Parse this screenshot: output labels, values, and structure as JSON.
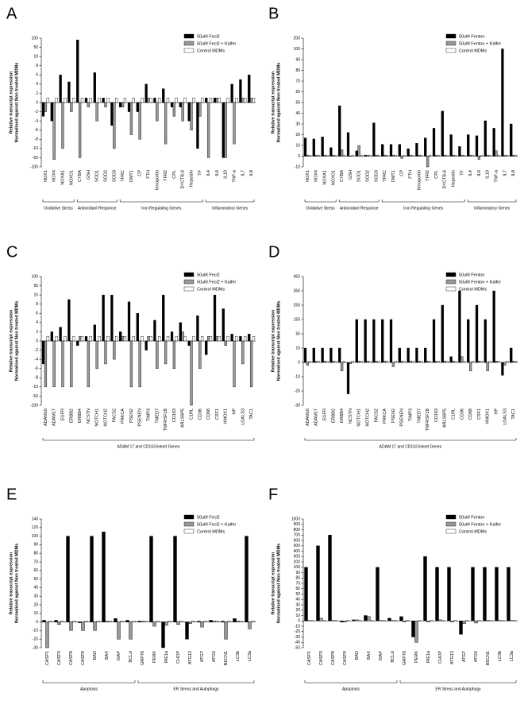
{
  "chart_data": [
    {
      "type": "bar",
      "panel": "A",
      "ylabel": [
        "Relative transcript expression",
        "Normalised against Non treated MDMs"
      ],
      "categories": [
        "NOX1",
        "NOX4",
        "NOXA1",
        "NOXO1",
        "CYBA",
        "GSH",
        "SOD1",
        "SOD2",
        "SOD3",
        "TFRC",
        "DMT1",
        "CP",
        "FTH",
        "ferroportin",
        "TFR2",
        "CPL",
        "DYCTB-6",
        "Hepcidin",
        "TF",
        "IL4",
        "IL6",
        "IL10",
        "TNF-a",
        "IL7",
        "IL8"
      ],
      "groups": [
        "Oxidative Stress",
        "Antioxidant Response",
        "Iron Regulating Genes",
        "Inflammatory Genes"
      ],
      "series": [
        {
          "name": "50uM Fecl2",
          "color": "#000000",
          "values": [
            -3,
            -4,
            6,
            4.5,
            90,
            1,
            6.5,
            1,
            -5,
            -1,
            -2,
            -2,
            4,
            1,
            3,
            -1,
            -1,
            -4,
            -10,
            1,
            1,
            -50,
            4,
            5,
            6
          ]
        },
        {
          "name": "50uM Fecl2 + Kalfer",
          "color": "#999999",
          "values": [
            -2,
            -60,
            -10,
            -2,
            -50,
            -1,
            -4,
            -1,
            -10,
            -1,
            -7,
            -8,
            1,
            -4,
            -9,
            -3,
            -4,
            -6,
            -3,
            -50,
            1,
            -50,
            -9,
            1,
            1
          ]
        },
        {
          "name": "Control MDMs",
          "color": "#ffffff",
          "values": [
            1,
            1,
            1,
            1,
            1,
            1,
            1,
            1,
            1,
            1,
            1,
            1,
            1,
            1,
            1,
            1,
            1,
            1,
            1,
            1,
            1,
            1,
            1,
            1,
            1
          ]
        }
      ],
      "ylim": [
        -100,
        100
      ],
      "yticks": [
        -100,
        -50,
        -10,
        -8,
        -6,
        -4,
        -2,
        0,
        2,
        4,
        6,
        8,
        10,
        50,
        100
      ]
    },
    {
      "type": "bar",
      "panel": "B",
      "ylabel": [
        "Relative transcript expression",
        "Normalised against Non treated MDMs"
      ],
      "categories": [
        "NOX1",
        "NOX4",
        "NOXA1",
        "NOXO1",
        "CYBA",
        "GSH",
        "SOD1",
        "SOD2",
        "SOD3",
        "TFRC",
        "DMT1",
        "CP",
        "FTH",
        "ferroportin",
        "TFR2",
        "CPL",
        "DYCTB-6",
        "Hepcidin",
        "TF",
        "IL4",
        "IL6",
        "IL10",
        "TNF-a",
        "IL7",
        "IL8"
      ],
      "groups": [
        "Oxidative Stress",
        "Antioxidant Response",
        "Iron Regulating Genes",
        "Inflammatory Genes"
      ],
      "series": [
        {
          "name": "50uM Fenton",
          "color": "#000000",
          "values": [
            17,
            16,
            18,
            8,
            47,
            22,
            5,
            1,
            31,
            11,
            11,
            11,
            7,
            12,
            17,
            26,
            42,
            20,
            9,
            20,
            19,
            33,
            26,
            100,
            30
          ]
        },
        {
          "name": "50uM Fenton + Kalfer",
          "color": "#999999",
          "values": [
            1,
            1,
            1,
            1,
            6,
            0,
            10,
            1,
            1,
            1,
            1,
            -2,
            1,
            1,
            -10,
            1,
            1,
            1,
            1,
            1,
            -3,
            1,
            5,
            1,
            1
          ]
        },
        {
          "name": "Control MDMs",
          "color": "#ffffff",
          "values": [
            1,
            1,
            1,
            1,
            1,
            1,
            1,
            1,
            1,
            1,
            1,
            1,
            1,
            1,
            1,
            1,
            1,
            1,
            1,
            1,
            1,
            1,
            1,
            1,
            1
          ]
        }
      ],
      "ylim": [
        -10,
        200
      ],
      "yticks": [
        -10,
        0,
        10,
        20,
        30,
        40,
        50,
        60,
        70,
        80,
        90,
        100,
        200
      ]
    },
    {
      "type": "bar",
      "panel": "C",
      "ylabel": [
        "Relative transcript expression",
        "Normalised against Non treated MDMs"
      ],
      "categories": [
        "ADAM10",
        "ADAM17",
        "EGFR",
        "ERBB2",
        "ERBB4",
        "NCSTN",
        "NOTCH1",
        "NOTCH2",
        "FACS2",
        "PRKCA",
        "PSEN2",
        "PSENEN",
        "TIMP3",
        "TMED7",
        "TNFRSF1B",
        "CD163",
        "ARLS6P5",
        "C1RL",
        "CD36",
        "CD68",
        "CSF1",
        "HMOX1",
        "HP",
        "LGALS3",
        "TAC1"
      ],
      "groups": [
        "ADAM 17 and CD163 linked Genes"
      ],
      "series": [
        {
          "name": "50uM Fecl2",
          "color": "#000000",
          "values": [
            -5,
            2,
            3,
            9,
            -1,
            1,
            3.5,
            10,
            10,
            2,
            8.5,
            6,
            -2,
            4.5,
            10,
            2,
            4,
            -1,
            5.5,
            -3,
            10,
            7,
            1.5,
            1,
            1.5
          ]
        },
        {
          "name": "50uM Fecl2 + Kalfer",
          "color": "#999999",
          "values": [
            -10,
            -10,
            -10,
            -10,
            1,
            -10,
            -6,
            -5,
            -4,
            1,
            -10,
            -10,
            1,
            -6,
            -5,
            -6,
            2,
            -100,
            -6,
            1,
            1,
            -1,
            -10,
            -5,
            -10
          ]
        },
        {
          "name": "Control MDMs",
          "color": "#ffffff",
          "values": [
            1,
            1,
            1,
            1,
            1,
            1,
            1,
            1,
            1,
            1,
            1,
            1,
            1,
            1,
            1,
            1,
            1,
            1,
            1,
            1,
            1,
            1,
            1,
            1,
            1
          ]
        }
      ],
      "ylim": [
        -100,
        100
      ],
      "yticks": [
        -100,
        -50,
        -10,
        -8,
        -6,
        -4,
        -2,
        0,
        2,
        4,
        6,
        8,
        10,
        50,
        100
      ]
    },
    {
      "type": "bar",
      "panel": "D",
      "ylabel": [
        "Relative transcript expression",
        "Normalised against Non treated MDMs"
      ],
      "categories": [
        "ADAM10",
        "ADAM17",
        "EGFR",
        "ERBB2",
        "ERBB4",
        "NCSTN",
        "NOTCH1",
        "NOTCH2",
        "FACS2",
        "PRKCA",
        "PSEN2",
        "PSENEN",
        "TIMP3",
        "TMED7",
        "TNFRSF1B",
        "CD163",
        "ARLS6P5",
        "C1RL",
        "CD36",
        "CD68",
        "CSF1",
        "HMOX1",
        "HP",
        "LGALS3",
        "TAC1"
      ],
      "groups": [
        "ADAM 17 and CD163 linked Genes"
      ],
      "series": [
        {
          "name": "50uM Fenton",
          "color": "#000000",
          "values": [
            10,
            10,
            10,
            10,
            10,
            -22,
            150,
            150,
            150,
            150,
            150,
            10,
            10,
            10,
            10,
            150,
            250,
            4,
            350,
            150,
            250,
            150,
            350,
            -9,
            10
          ]
        },
        {
          "name": "50uM Fenton + Kalfer",
          "color": "#999999",
          "values": [
            -2,
            1,
            1,
            1,
            -6,
            -1,
            1,
            1,
            1,
            1,
            -3,
            1,
            1,
            1,
            1,
            1,
            1,
            1,
            4,
            -6,
            1,
            -6,
            1,
            -2,
            1
          ]
        },
        {
          "name": "Control MDMs",
          "color": "#ffffff",
          "values": [
            1,
            1,
            1,
            1,
            1,
            1,
            1,
            1,
            1,
            1,
            1,
            1,
            1,
            1,
            1,
            1,
            1,
            1,
            1,
            1,
            1,
            1,
            1,
            1,
            1
          ]
        }
      ],
      "ylim": [
        -30,
        450
      ],
      "yticks": [
        -30,
        -20,
        -10,
        0,
        10,
        50,
        150,
        250,
        350,
        450
      ]
    },
    {
      "type": "bar",
      "panel": "E",
      "ylabel": [
        "Relative transcript expression",
        "Normalised against Non treated MDMs"
      ],
      "categories": [
        "CASP1",
        "CASP3",
        "CASP8",
        "CASP9",
        "BAD",
        "BAX",
        "XIAP",
        "BCLxl",
        "GRP78",
        "PERK",
        "IRE1a",
        "CHOP",
        "ATG12",
        "ATG7",
        "ATG5",
        "BECN1",
        "LC3b",
        "LC3a"
      ],
      "groups": [
        "Apoptosis",
        "ER Stress and Autophagy"
      ],
      "series": [
        {
          "name": "50uM Fecl2",
          "color": "#000000",
          "values": [
            2,
            2,
            100,
            -1,
            100,
            110,
            4,
            2,
            1,
            100,
            -30,
            100,
            -20,
            1,
            2,
            1,
            4,
            100
          ]
        },
        {
          "name": "50uM Fecl2 + Kalfer",
          "color": "#999999",
          "values": [
            -30,
            -3,
            -10,
            -10,
            -10,
            1,
            -20,
            -20,
            1,
            -5,
            -4,
            -3,
            -2,
            -6,
            1,
            -20,
            1,
            -8
          ]
        },
        {
          "name": "Control MDMs",
          "color": "#ffffff",
          "values": [
            1,
            1,
            1,
            1,
            1,
            1,
            1,
            1,
            1,
            1,
            1,
            1,
            1,
            1,
            1,
            1,
            1,
            1
          ]
        }
      ],
      "ylim": [
        -30,
        140
      ],
      "yticks": [
        -30,
        -20,
        -10,
        0,
        10,
        20,
        30,
        40,
        50,
        60,
        70,
        80,
        90,
        100,
        120,
        140
      ]
    },
    {
      "type": "bar",
      "panel": "F",
      "ylabel": [
        "Relative transcript expression",
        "Normalised against Non treated MDMs"
      ],
      "categories": [
        "CASP1",
        "CASP3",
        "CASP8",
        "CASP9",
        "BAD",
        "BAX",
        "XIAP",
        "BCLxl",
        "GRP78",
        "PERK",
        "IRE1a",
        "CHOP",
        "ATG12",
        "ATG7",
        "ATG5",
        "BECN1",
        "LC3b",
        "LC3a"
      ],
      "groups": [
        "Apoptosis",
        "ER Stress and Autophagy"
      ],
      "series": [
        {
          "name": "50uM Fenton",
          "color": "#000000",
          "values": [
            100,
            500,
            700,
            -2,
            2,
            10,
            100,
            5,
            8,
            -30,
            300,
            100,
            100,
            -25,
            100,
            100,
            100,
            100
          ]
        },
        {
          "name": "50uM Fenton + Kalfer",
          "color": "#999999",
          "values": [
            1,
            5,
            1,
            -2,
            2,
            8,
            1,
            1,
            -2,
            -40,
            -2,
            2,
            -2,
            -5,
            -4,
            1,
            1,
            1
          ]
        },
        {
          "name": "Control MDMs",
          "color": "#ffffff",
          "values": [
            1,
            1,
            1,
            1,
            1,
            1,
            1,
            1,
            1,
            1,
            1,
            1,
            1,
            1,
            1,
            1,
            1,
            1
          ]
        }
      ],
      "ylim": [
        -50,
        1000
      ],
      "yticks": [
        -50,
        -40,
        -30,
        -20,
        -10,
        0,
        10,
        20,
        30,
        40,
        50,
        60,
        70,
        80,
        90,
        100,
        200,
        300,
        400,
        500,
        600,
        700,
        800,
        900,
        1000
      ]
    }
  ]
}
